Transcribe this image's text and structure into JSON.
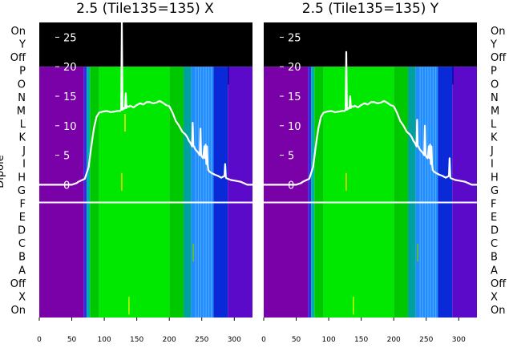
{
  "y_axis_label": "Dipole",
  "row_labels": [
    "On",
    "Y",
    "Off",
    "P",
    "O",
    "N",
    "M",
    "L",
    "K",
    "J",
    "I",
    "H",
    "G",
    "F",
    "E",
    "D",
    "C",
    "B",
    "A",
    "Off",
    "X",
    "On"
  ],
  "colors": {
    "background_top": "#000000",
    "purple": "#7a00a8",
    "green_bright": "#00e800",
    "green": "#00c800",
    "blue": "#0a2ad8",
    "cyan": "#1e90ff",
    "line": "#ffffff"
  },
  "chart_data": [
    {
      "type": "line",
      "title": "2.5 (Tile135=135) X",
      "xlim": [
        0,
        328
      ],
      "ylim": [
        -22.5,
        27.5
      ],
      "xticks": [
        0,
        50,
        100,
        150,
        200,
        250,
        300
      ],
      "yticks": [
        0,
        5,
        10,
        15,
        20,
        25
      ],
      "separator_y": -3,
      "x": [
        0,
        30,
        40,
        50,
        58,
        60,
        70,
        76,
        80,
        84,
        88,
        92,
        98,
        104,
        110,
        116,
        120,
        124,
        126,
        127,
        128,
        129,
        130,
        131,
        132,
        133,
        134,
        135,
        136,
        138,
        140,
        145,
        150,
        155,
        160,
        165,
        170,
        175,
        180,
        185,
        190,
        195,
        200,
        205,
        210,
        215,
        220,
        225,
        228,
        230,
        233,
        235,
        236,
        237,
        238,
        240,
        244,
        247,
        248,
        249,
        250,
        252,
        254,
        255,
        256,
        257,
        258,
        259,
        260,
        262,
        265,
        270,
        275,
        280,
        285,
        286,
        287,
        288,
        290,
        295,
        300,
        310,
        320,
        328
      ],
      "y": [
        0,
        0,
        0,
        0,
        0.3,
        0.5,
        1,
        3,
        6.5,
        9.5,
        11.5,
        12.2,
        12.4,
        12.5,
        12.3,
        12.4,
        12.5,
        12.5,
        12.7,
        27.5,
        12.7,
        12.8,
        13,
        12.9,
        13,
        15.5,
        13,
        13.2,
        13.3,
        13.2,
        13.4,
        13.1,
        13.5,
        13.8,
        13.6,
        14,
        14,
        13.8,
        13.9,
        14.2,
        13.9,
        13.5,
        13.3,
        12.2,
        10.8,
        10,
        9,
        8.5,
        8,
        7.5,
        7,
        6.5,
        10.5,
        6.5,
        6.5,
        6,
        5.5,
        5,
        9.5,
        5,
        4.8,
        4.5,
        6.5,
        4.5,
        6.8,
        3.5,
        6.5,
        3.5,
        2.5,
        2.2,
        2,
        1.7,
        1.5,
        1.2,
        1.5,
        3.5,
        1.2,
        1.1,
        1,
        0.8,
        0.7,
        0.5,
        0,
        0
      ],
      "bands": [
        {
          "x0": 0,
          "x1": 68,
          "color": "#7a00a8"
        },
        {
          "x0": 68,
          "x1": 73,
          "color": "#3a2ad8"
        },
        {
          "x0": 73,
          "x1": 78,
          "color": "#00b0b0"
        },
        {
          "x0": 78,
          "x1": 92,
          "color": "#00c800"
        },
        {
          "x0": 92,
          "x1": 200,
          "color": "#00e800"
        },
        {
          "x0": 200,
          "x1": 222,
          "color": "#00c800"
        },
        {
          "x0": 222,
          "x1": 234,
          "color": "#00a0a0"
        },
        {
          "x0": 234,
          "x1": 268,
          "color": "#1e8cff"
        },
        {
          "x0": 268,
          "x1": 290,
          "color": "#0a2ad8"
        },
        {
          "x0": 290,
          "x1": 328,
          "color": "#5a0ac8"
        }
      ],
      "marks": [
        {
          "x": 131,
          "y0": 9,
          "y1": 12,
          "color": "#ffee00"
        },
        {
          "x": 126,
          "y0": -1,
          "y1": 2,
          "color": "#ffcc00"
        },
        {
          "x": 290,
          "y0": 17,
          "y1": 20,
          "color": "#0000aa"
        },
        {
          "x": 236,
          "y0": -13,
          "y1": -10,
          "color": "#66cc00"
        },
        {
          "x": 137,
          "y0": -22,
          "y1": -19,
          "color": "#ccff00"
        }
      ]
    },
    {
      "type": "line",
      "title": "2.5 (Tile135=135) Y",
      "xlim": [
        0,
        328
      ],
      "ylim": [
        -22.5,
        27.5
      ],
      "xticks": [
        0,
        50,
        100,
        150,
        200,
        250,
        300
      ],
      "yticks": [
        0,
        5,
        10,
        15,
        20,
        25
      ],
      "separator_y": -3,
      "x": [
        0,
        30,
        40,
        50,
        58,
        60,
        70,
        76,
        80,
        84,
        88,
        92,
        98,
        104,
        110,
        116,
        120,
        124,
        126,
        127,
        128,
        129,
        130,
        131,
        132,
        133,
        134,
        135,
        136,
        138,
        140,
        145,
        150,
        155,
        160,
        165,
        170,
        175,
        180,
        185,
        190,
        195,
        200,
        205,
        210,
        215,
        220,
        225,
        228,
        230,
        233,
        235,
        236,
        237,
        238,
        240,
        244,
        247,
        248,
        249,
        250,
        252,
        254,
        255,
        256,
        257,
        258,
        259,
        260,
        262,
        265,
        270,
        275,
        280,
        285,
        286,
        287,
        288,
        290,
        295,
        300,
        310,
        320,
        328
      ],
      "y": [
        0,
        0,
        0,
        0,
        0.3,
        0.5,
        1,
        3,
        6.5,
        9.5,
        11.5,
        12.2,
        12.4,
        12.5,
        12.3,
        12.4,
        12.5,
        12.5,
        12.7,
        22.5,
        12.7,
        12.8,
        13,
        12.9,
        13,
        15,
        13,
        13.2,
        13.3,
        13.2,
        13.4,
        13.1,
        13.5,
        13.8,
        13.6,
        14,
        14,
        13.8,
        13.9,
        14.2,
        13.9,
        13.5,
        13.3,
        12.2,
        10.8,
        10,
        9,
        8.5,
        8,
        7.5,
        7,
        6.5,
        11,
        6.5,
        6.5,
        6,
        5.5,
        5,
        10,
        5,
        4.8,
        4.5,
        6.5,
        4.5,
        6.8,
        3.5,
        6.5,
        3.5,
        2.5,
        2.2,
        2,
        1.7,
        1.5,
        1.2,
        1.5,
        4.5,
        1.2,
        1.1,
        1,
        0.8,
        0.7,
        0.5,
        0,
        0
      ],
      "bands": [
        {
          "x0": 0,
          "x1": 68,
          "color": "#7a00a8"
        },
        {
          "x0": 68,
          "x1": 73,
          "color": "#3a2ad8"
        },
        {
          "x0": 73,
          "x1": 78,
          "color": "#00b0b0"
        },
        {
          "x0": 78,
          "x1": 92,
          "color": "#00c800"
        },
        {
          "x0": 92,
          "x1": 200,
          "color": "#00e800"
        },
        {
          "x0": 200,
          "x1": 222,
          "color": "#00c800"
        },
        {
          "x0": 222,
          "x1": 234,
          "color": "#00a0a0"
        },
        {
          "x0": 234,
          "x1": 268,
          "color": "#1e8cff"
        },
        {
          "x0": 268,
          "x1": 290,
          "color": "#0a2ad8"
        },
        {
          "x0": 290,
          "x1": 328,
          "color": "#5a0ac8"
        }
      ],
      "marks": [
        {
          "x": 126,
          "y0": -1,
          "y1": 2,
          "color": "#ffcc00"
        },
        {
          "x": 290,
          "y0": 17,
          "y1": 20,
          "color": "#0000aa"
        },
        {
          "x": 236,
          "y0": -13,
          "y1": -10,
          "color": "#66cc00"
        },
        {
          "x": 137,
          "y0": -22,
          "y1": -19,
          "color": "#ccff00"
        }
      ]
    }
  ]
}
